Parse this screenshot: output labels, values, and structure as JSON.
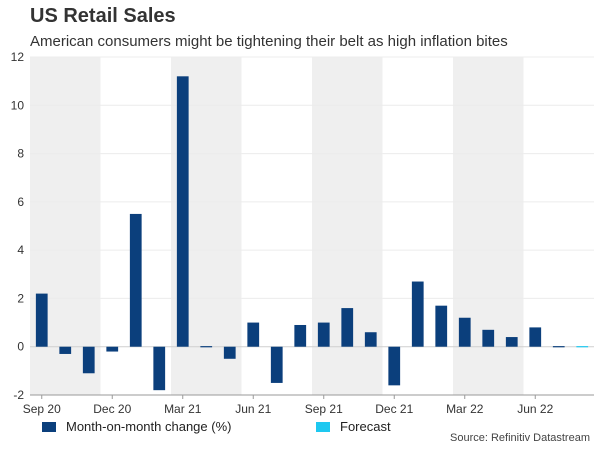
{
  "chart_data": {
    "type": "bar",
    "title": "US Retail Sales",
    "subtitle": "American consumers might be tightening their belt as high inflation bites",
    "ylim": [
      -2,
      12
    ],
    "yticks": [
      -2,
      0,
      2,
      4,
      6,
      8,
      10,
      12
    ],
    "months": [
      "Sep 20",
      "Oct 20",
      "Nov 20",
      "Dec 20",
      "Jan 21",
      "Feb 21",
      "Mar 21",
      "Apr 21",
      "May 21",
      "Jun 21",
      "Jul 21",
      "Aug 21",
      "Sep 21",
      "Oct 21",
      "Nov 21",
      "Dec 21",
      "Jan 22",
      "Feb 22",
      "Mar 22",
      "Apr 22",
      "May 22",
      "Jun 22",
      "Jul 22",
      "Aug 22"
    ],
    "x_tick_labels": [
      "Sep 20",
      "Dec 20",
      "Mar 21",
      "Jun 21",
      "Sep 21",
      "Dec 21",
      "Mar 22",
      "Jun 22"
    ],
    "series": [
      {
        "name": "Month-on-month change (%)",
        "color": "#0b3f7c",
        "values": [
          2.2,
          -0.3,
          -1.1,
          -0.2,
          5.5,
          -1.8,
          11.2,
          0.0,
          -0.5,
          1.0,
          -1.5,
          0.9,
          1.0,
          1.6,
          0.6,
          -1.6,
          2.7,
          1.7,
          1.2,
          0.7,
          0.4,
          0.8,
          0.0,
          null
        ]
      },
      {
        "name": "Forecast",
        "color": "#1ec8f0",
        "values": [
          null,
          null,
          null,
          null,
          null,
          null,
          null,
          null,
          null,
          null,
          null,
          null,
          null,
          null,
          null,
          null,
          null,
          null,
          null,
          null,
          null,
          null,
          null,
          0.0
        ]
      }
    ],
    "shaded_quarter_groups": [
      0,
      2,
      4,
      6
    ],
    "source": "Source: Refinitiv Datastream",
    "grid": true
  }
}
